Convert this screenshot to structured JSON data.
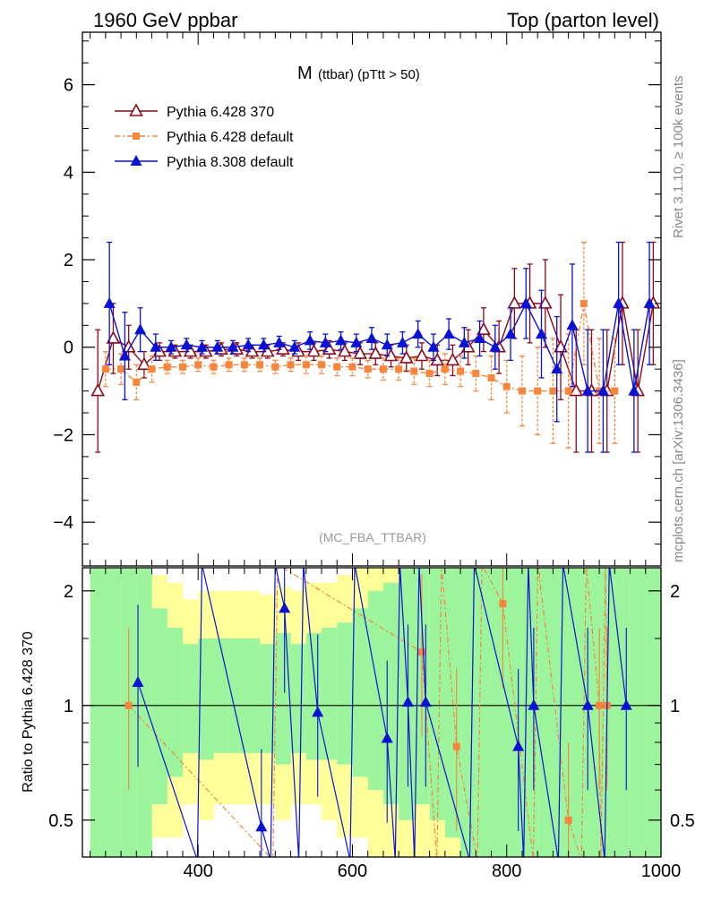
{
  "header": {
    "left": "1960 GeV ppbar",
    "right": "Top (parton level)"
  },
  "side_labels": {
    "rivet": "Rivet 3.1.10, ≥ 100k events",
    "mcplots": "mcplots.cern.ch [arXiv:1306.3436]"
  },
  "chart_data": [
    {
      "type": "line",
      "title_main": "M",
      "title_sub": "(ttbar) (pTtt > 50)",
      "watermark": "(MC_FBA_TTBAR)",
      "ylim": [
        -5,
        7.2
      ],
      "xlim": [
        250,
        1000
      ],
      "y_ticks": [
        -4,
        -2,
        0,
        2,
        4,
        6
      ],
      "y_tick_labels": [
        "−4",
        "−2",
        "0",
        "2",
        "4",
        "6"
      ],
      "legend_position": "top-left",
      "colors": {
        "p370": "#8b0a1a",
        "p6def": "#f7853c",
        "p8def": "#0a12d6"
      },
      "series": [
        {
          "name": "Pythia 6.428 370",
          "marker": "open-triangle",
          "x": [
            270,
            290,
            310,
            330,
            350,
            370,
            390,
            410,
            430,
            450,
            470,
            490,
            510,
            530,
            550,
            570,
            590,
            610,
            630,
            650,
            670,
            690,
            710,
            730,
            750,
            770,
            790,
            810,
            830,
            850,
            870,
            890,
            910,
            930,
            950,
            970,
            990
          ],
          "values": [
            -1.0,
            0.2,
            0.0,
            -0.4,
            -0.1,
            -0.1,
            -0.1,
            -0.1,
            -0.05,
            -0.05,
            -0.1,
            -0.1,
            -0.05,
            -0.1,
            -0.1,
            -0.05,
            -0.1,
            -0.15,
            -0.15,
            -0.2,
            -0.25,
            -0.2,
            -0.3,
            -0.3,
            0.0,
            0.4,
            0.0,
            1.0,
            1.0,
            1.0,
            0.0,
            -1.0,
            -1.0,
            -1.0,
            1.0,
            -1.0,
            1.0
          ],
          "errors": [
            1.4,
            0.8,
            0.5,
            0.3,
            0.2,
            0.15,
            0.15,
            0.15,
            0.15,
            0.15,
            0.15,
            0.15,
            0.15,
            0.2,
            0.2,
            0.2,
            0.2,
            0.25,
            0.25,
            0.25,
            0.3,
            0.3,
            0.35,
            0.35,
            0.4,
            0.5,
            0.6,
            0.8,
            0.9,
            1.0,
            1.2,
            1.4,
            1.4,
            1.4,
            1.4,
            1.4,
            1.4
          ]
        },
        {
          "name": "Pythia 6.428 default",
          "marker": "square",
          "x": [
            280,
            300,
            320,
            340,
            360,
            380,
            400,
            420,
            440,
            460,
            480,
            500,
            520,
            540,
            560,
            580,
            600,
            620,
            640,
            660,
            680,
            700,
            720,
            740,
            760,
            780,
            800,
            820,
            840,
            860,
            880,
            900,
            920,
            940
          ],
          "values": [
            -0.5,
            -0.5,
            -0.8,
            -0.5,
            -0.45,
            -0.45,
            -0.4,
            -0.45,
            -0.4,
            -0.4,
            -0.4,
            -0.45,
            -0.4,
            -0.4,
            -0.4,
            -0.45,
            -0.45,
            -0.5,
            -0.5,
            -0.5,
            -0.55,
            -0.6,
            -0.5,
            -0.55,
            -0.6,
            -0.7,
            -0.9,
            -1.0,
            -1.0,
            -1.0,
            -1.0,
            1.0,
            -1.0,
            -1.0
          ],
          "errors": [
            0.4,
            0.35,
            0.4,
            0.3,
            0.15,
            0.15,
            0.15,
            0.15,
            0.15,
            0.15,
            0.15,
            0.15,
            0.15,
            0.2,
            0.2,
            0.2,
            0.2,
            0.2,
            0.25,
            0.25,
            0.3,
            0.3,
            0.35,
            0.35,
            0.4,
            0.5,
            0.6,
            0.8,
            1.0,
            1.2,
            1.3,
            1.4,
            1.2,
            1.2
          ]
        },
        {
          "name": "Pythia 8.308 default",
          "marker": "filled-triangle",
          "x": [
            285,
            305,
            325,
            345,
            365,
            385,
            405,
            425,
            445,
            465,
            485,
            505,
            525,
            545,
            565,
            585,
            605,
            625,
            645,
            665,
            685,
            705,
            725,
            745,
            765,
            785,
            805,
            825,
            845,
            865,
            885,
            905,
            925,
            945,
            965,
            985
          ],
          "values": [
            1.0,
            -0.2,
            0.4,
            0.0,
            0.0,
            0.05,
            0.0,
            0.0,
            0.0,
            0.05,
            0.05,
            0.1,
            0.0,
            0.15,
            0.1,
            0.15,
            0.1,
            0.2,
            0.05,
            0.1,
            0.3,
            0.0,
            0.3,
            0.1,
            0.2,
            0.0,
            0.3,
            1.0,
            0.3,
            -0.5,
            0.5,
            -1.0,
            -1.0,
            1.0,
            -1.0,
            1.0
          ],
          "errors": [
            1.4,
            1.0,
            0.5,
            0.3,
            0.15,
            0.15,
            0.15,
            0.15,
            0.15,
            0.15,
            0.15,
            0.15,
            0.15,
            0.2,
            0.2,
            0.2,
            0.2,
            0.25,
            0.25,
            0.25,
            0.3,
            0.3,
            0.35,
            0.35,
            0.4,
            0.5,
            0.6,
            0.8,
            1.0,
            1.2,
            1.4,
            1.4,
            1.4,
            1.4,
            1.4,
            1.4
          ]
        }
      ]
    },
    {
      "type": "line",
      "ylabel": "Ratio to Pythia 6.428 370",
      "xlim": [
        250,
        1000
      ],
      "ylim": [
        0.4,
        2.3
      ],
      "y_ticks": [
        0.5,
        1,
        2
      ],
      "y_tick_labels": [
        "0.5",
        "1",
        "2"
      ],
      "x_ticks": [
        400,
        600,
        800,
        1000
      ],
      "x_tick_labels": [
        "400",
        "600",
        "800",
        "1000"
      ],
      "band_colors": {
        "inner": "#9cf59c",
        "outer": "#ffff99"
      },
      "bands": {
        "x": [
          270,
          290,
          310,
          330,
          350,
          370,
          390,
          410,
          430,
          450,
          470,
          490,
          510,
          530,
          550,
          570,
          590,
          610,
          630,
          650,
          670,
          690,
          710,
          730,
          750,
          770,
          790,
          810,
          830,
          850,
          870,
          890,
          910,
          930,
          950,
          970,
          990
        ],
        "inner_low": [
          0.4,
          0.4,
          0.4,
          0.4,
          0.55,
          0.65,
          0.75,
          0.72,
          0.75,
          0.75,
          0.75,
          0.75,
          0.7,
          0.75,
          0.72,
          0.72,
          0.7,
          0.65,
          0.6,
          0.55,
          0.5,
          0.55,
          0.5,
          0.45,
          0.4,
          0.4,
          0.4,
          0.4,
          0.4,
          0.4,
          0.4,
          0.4,
          0.4,
          0.4,
          0.4,
          0.4,
          0.4
        ],
        "inner_high": [
          2.3,
          2.3,
          2.3,
          2.3,
          1.8,
          1.6,
          1.45,
          1.5,
          1.5,
          1.5,
          1.5,
          1.45,
          1.55,
          1.45,
          1.55,
          1.6,
          1.65,
          1.8,
          2.0,
          2.1,
          2.3,
          2.3,
          2.3,
          2.3,
          2.3,
          2.3,
          2.3,
          2.3,
          2.3,
          2.3,
          2.3,
          2.3,
          2.3,
          2.3,
          2.3,
          2.3,
          2.3
        ],
        "outer_low": [
          0.4,
          0.4,
          0.4,
          0.4,
          0.45,
          0.45,
          0.55,
          0.5,
          0.55,
          0.55,
          0.55,
          0.55,
          0.5,
          0.55,
          0.55,
          0.5,
          0.45,
          0.45,
          0.4,
          0.4,
          0.4,
          0.4,
          0.4,
          0.4,
          0.4,
          0.4,
          0.4,
          0.4,
          0.4,
          0.4,
          0.4,
          0.4,
          0.4,
          0.4,
          0.4,
          0.4,
          0.4
        ],
        "outer_high": [
          2.3,
          2.3,
          2.3,
          2.3,
          2.2,
          2.1,
          1.9,
          2.0,
          2.0,
          2.0,
          2.0,
          1.95,
          2.05,
          2.0,
          2.1,
          2.1,
          2.2,
          2.3,
          2.3,
          2.3,
          2.3,
          2.3,
          2.3,
          2.3,
          2.3,
          2.3,
          2.3,
          2.3,
          2.3,
          2.3,
          2.3,
          2.3,
          2.3,
          2.3,
          2.3,
          2.3,
          2.3
        ]
      },
      "series": [
        {
          "name": "Pythia 6.428 default",
          "marker": "square",
          "x": [
            310,
            690,
            735,
            795,
            880,
            920,
            930
          ],
          "values": [
            1.0,
            1.38,
            0.78,
            1.85,
            0.5,
            1.0,
            1.0
          ]
        },
        {
          "name": "Pythia 8.308 default",
          "marker": "filled-triangle",
          "x": [
            322,
            482,
            512,
            555,
            645,
            672,
            695,
            815,
            835,
            905,
            955
          ],
          "values": [
            1.15,
            0.48,
            1.8,
            0.96,
            0.82,
            1.02,
            1.02,
            0.78,
            1.0,
            1.0,
            1.0
          ]
        }
      ]
    }
  ]
}
